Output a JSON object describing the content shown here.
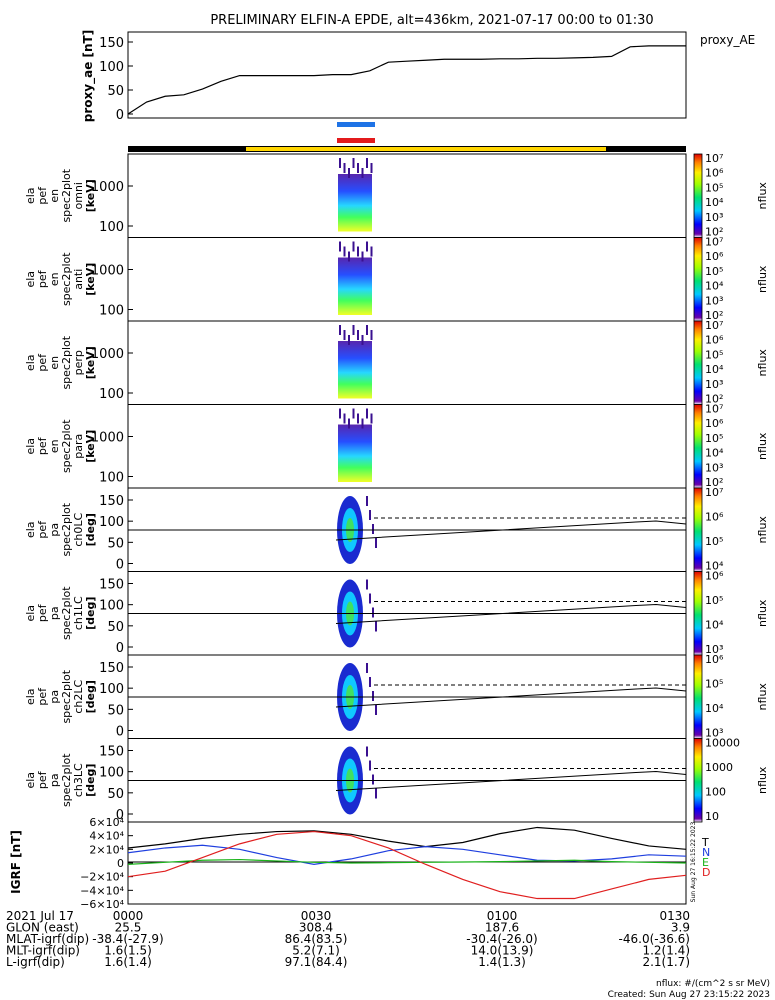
{
  "title": "PRELIMINARY ELFIN-A EPDE, alt=436km, 2021-07-17 00:00 to 01:30",
  "proxy_ae": {
    "ylabel": "proxy_ae [nT]",
    "legend": "proxy_AE",
    "yticks": [
      "150",
      "100",
      "50",
      "0"
    ],
    "ylim": [
      0,
      150
    ],
    "series": {
      "x_minutes": [
        0,
        3,
        6,
        9,
        12,
        15,
        18,
        21,
        24,
        27,
        30,
        33,
        36,
        39,
        42,
        45,
        48,
        51,
        54,
        57,
        60,
        63,
        66,
        69,
        72,
        75,
        78,
        81,
        84,
        87,
        90
      ],
      "values": [
        0,
        25,
        37,
        40,
        52,
        68,
        80,
        80,
        80,
        80,
        80,
        82,
        82,
        90,
        108,
        110,
        112,
        114,
        114,
        114,
        115,
        115,
        116,
        116,
        117,
        118,
        120,
        140,
        142,
        142,
        142
      ]
    }
  },
  "segment_bars": {
    "colors": [
      "#1e73e6",
      "#e31a1c"
    ],
    "track_colors": {
      "outer": "#000000",
      "science": "#ffd500"
    }
  },
  "colorbar_label": "nflux",
  "panels": [
    {
      "ylabel": [
        "ela",
        "pef",
        "en",
        "spec2plot",
        "omni",
        "[keV]"
      ],
      "yticks": [
        "1000",
        "100"
      ],
      "cbar_ticks": [
        "10⁷",
        "10⁶",
        "10⁵",
        "10⁴",
        "10³",
        "10²"
      ],
      "type": "energy"
    },
    {
      "ylabel": [
        "ela",
        "pef",
        "en",
        "spec2plot",
        "anti",
        "[keV]"
      ],
      "yticks": [
        "1000",
        "100"
      ],
      "cbar_ticks": [
        "10⁷",
        "10⁶",
        "10⁵",
        "10⁴",
        "10³",
        "10²"
      ],
      "type": "energy"
    },
    {
      "ylabel": [
        "ela",
        "pef",
        "en",
        "spec2plot",
        "perp",
        "[keV]"
      ],
      "yticks": [
        "1000",
        "100"
      ],
      "cbar_ticks": [
        "10⁷",
        "10⁶",
        "10⁵",
        "10⁴",
        "10³",
        "10²"
      ],
      "type": "energy"
    },
    {
      "ylabel": [
        "ela",
        "pef",
        "en",
        "spec2plot",
        "para",
        "[keV]"
      ],
      "yticks": [
        "1000",
        "100"
      ],
      "cbar_ticks": [
        "10⁷",
        "10⁶",
        "10⁵",
        "10⁴",
        "10³",
        "10²"
      ],
      "type": "energy"
    },
    {
      "ylabel": [
        "ela",
        "pef",
        "pa",
        "spec2plot",
        "ch0LC",
        "[deg]"
      ],
      "yticks": [
        "150",
        "100",
        "50",
        "0"
      ],
      "cbar_ticks": [
        "10⁷",
        "10⁶",
        "10⁵",
        "10⁴"
      ],
      "type": "pa"
    },
    {
      "ylabel": [
        "ela",
        "pef",
        "pa",
        "spec2plot",
        "ch1LC",
        "[deg]"
      ],
      "yticks": [
        "150",
        "100",
        "50",
        "0"
      ],
      "cbar_ticks": [
        "10⁶",
        "10⁵",
        "10⁴",
        "10³"
      ],
      "type": "pa"
    },
    {
      "ylabel": [
        "ela",
        "pef",
        "pa",
        "spec2plot",
        "ch2LC",
        "[deg]"
      ],
      "yticks": [
        "150",
        "100",
        "50",
        "0"
      ],
      "cbar_ticks": [
        "10⁶",
        "10⁵",
        "10⁴",
        "10³"
      ],
      "type": "pa"
    },
    {
      "ylabel": [
        "ela",
        "pef",
        "pa",
        "spec2plot",
        "ch3LC",
        "[deg]"
      ],
      "yticks": [
        "150",
        "100",
        "50",
        "0"
      ],
      "cbar_ticks": [
        "10000",
        "1000",
        "100",
        "10"
      ],
      "type": "pa"
    }
  ],
  "igrf": {
    "ylabel": "IGRF [nT]",
    "yticks": [
      "6×10⁴",
      "4×10⁴",
      "2×10⁴",
      "0",
      "−2×10⁴",
      "−4×10⁴",
      "−6×10⁴"
    ],
    "ylim": [
      -60000,
      60000
    ],
    "legend": [
      {
        "label": "T",
        "color": "#000000"
      },
      {
        "label": "N",
        "color": "#1f3fdf"
      },
      {
        "label": "E",
        "color": "#19b319"
      },
      {
        "label": "D",
        "color": "#e01f1f"
      }
    ],
    "series": {
      "x_minutes": [
        0,
        6,
        12,
        18,
        24,
        30,
        36,
        42,
        48,
        54,
        60,
        66,
        72,
        78,
        84,
        90
      ],
      "T": [
        22000,
        28000,
        36000,
        42000,
        46000,
        47000,
        42000,
        32000,
        24000,
        30000,
        43000,
        52000,
        48000,
        36000,
        25000,
        20000
      ],
      "N": [
        15000,
        22000,
        26000,
        20000,
        8000,
        -2000,
        6000,
        18000,
        24000,
        20000,
        12000,
        4000,
        3000,
        6000,
        12000,
        10000
      ],
      "E": [
        -2000,
        1000,
        4000,
        5000,
        3000,
        1000,
        0,
        500,
        1000,
        1500,
        2000,
        3000,
        4000,
        2000,
        1000,
        0
      ],
      "D": [
        -20000,
        -12000,
        8000,
        28000,
        42000,
        46000,
        40000,
        22000,
        -2000,
        -24000,
        -42000,
        -52000,
        -52000,
        -38000,
        -24000,
        -18000
      ]
    }
  },
  "footer": {
    "rows": [
      {
        "label": "2021 Jul 17",
        "values": [
          "0000",
          "0030",
          "0100",
          "0130"
        ]
      },
      {
        "label": "GLON (east)",
        "values": [
          "25.5",
          "308.4",
          "187.6",
          "3.9"
        ]
      },
      {
        "label": "MLAT-igrf(dip)",
        "values": [
          "-38.4(-27.9)",
          "86.4(83.5)",
          "-30.4(-26.0)",
          "-46.0(-36.6)"
        ]
      },
      {
        "label": "MLT-igrf(dip)",
        "values": [
          "1.6(1.5)",
          "5.2(7.1)",
          "14.0(13.9)",
          "1.2(1.4)"
        ]
      },
      {
        "label": "L-igrf(dip)",
        "values": [
          "1.6(1.4)",
          "97.1(84.4)",
          "1.4(1.3)",
          "2.1(1.7)"
        ]
      }
    ],
    "nflux_units": "nflux: #/(cm^2 s sr MeV)",
    "created": "Created: Sun Aug 27 23:15:22 2023",
    "side_stamp": "Sun Aug 27 16:15:22 2023"
  }
}
